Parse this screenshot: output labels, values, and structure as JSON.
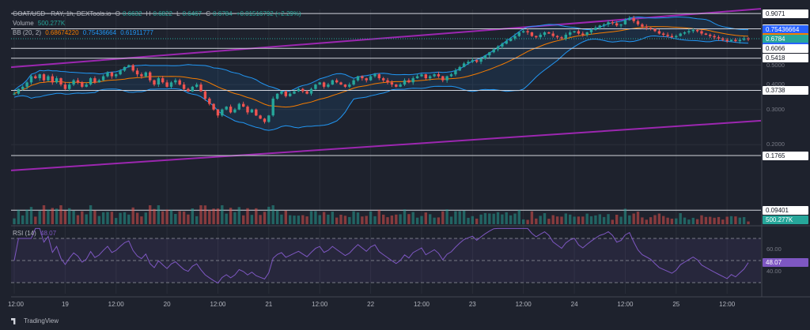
{
  "header": {
    "symbol": "GOAT/USD · RAY, 1h, DEXTools.io",
    "o_label": "O",
    "o": "0.6632",
    "h_label": "H",
    "h": "0.6822",
    "l_label": "L",
    "l": "0.6467",
    "c_label": "C",
    "c": "0.6784",
    "change": "+0.01516792 (+2.29%)",
    "volume_label": "Volume",
    "volume_value": "500.277K",
    "bb_label": "BB (20, 2)",
    "bb_basis": "0.68674220",
    "bb_upper": "0.75436664",
    "bb_lower": "0.61911777",
    "rsi_label": "RSI (14)",
    "rsi_value": "48.07"
  },
  "price_labels": [
    {
      "text": "0.9071",
      "price": 0.9071,
      "bg": "#ffffff",
      "fg": "#131722"
    },
    {
      "text": "0.7598",
      "price": 0.7598,
      "bg": "#ffffff",
      "fg": "#131722"
    },
    {
      "text": "0.75436664",
      "price": 0.75436664,
      "bg": "#2962ff",
      "fg": "#ffffff"
    },
    {
      "text": "0.68674220",
      "price": 0.6867422,
      "bg": "#f57c00",
      "fg": "#ffffff"
    },
    {
      "text": "0.6784",
      "price": 0.6784,
      "bg": "#26a69a",
      "fg": "#ffffff"
    },
    {
      "text": "0.61911777",
      "price": 0.61911777,
      "bg": "#2962ff",
      "fg": "#ffffff"
    },
    {
      "text": "0.6066",
      "price": 0.6066,
      "bg": "#ffffff",
      "fg": "#131722"
    },
    {
      "text": "0.5418",
      "price": 0.5418,
      "bg": "#ffffff",
      "fg": "#131722"
    },
    {
      "text": "0.3738",
      "price": 0.3738,
      "bg": "#ffffff",
      "fg": "#131722"
    },
    {
      "text": "0.1765",
      "price": 0.1765,
      "bg": "#ffffff",
      "fg": "#131722"
    },
    {
      "text": "0.09401",
      "price": 0.09401,
      "bg": "#ffffff",
      "fg": "#131722"
    }
  ],
  "volume_badge": {
    "text": "500.277K",
    "bg": "#26a69a",
    "fg": "#ffffff"
  },
  "rsi_badge": {
    "text": "48.07",
    "bg": "#7e57c2",
    "fg": "#ffffff"
  },
  "price_axis_ticks": [
    {
      "text": "0.5000",
      "price": 0.5
    },
    {
      "text": "0.4000",
      "price": 0.4
    },
    {
      "text": "0.3000",
      "price": 0.3
    },
    {
      "text": "0.2000",
      "price": 0.2
    }
  ],
  "rsi_axis_ticks": [
    {
      "text": "60.00",
      "value": 60
    },
    {
      "text": "40.00",
      "value": 40
    }
  ],
  "x_ticks": [
    {
      "text": "12:00",
      "bar": 0
    },
    {
      "text": "19",
      "bar": 12
    },
    {
      "text": "12:00",
      "bar": 24
    },
    {
      "text": "20",
      "bar": 36
    },
    {
      "text": "12:00",
      "bar": 48
    },
    {
      "text": "21",
      "bar": 60
    },
    {
      "text": "12:00",
      "bar": 72
    },
    {
      "text": "22",
      "bar": 84
    },
    {
      "text": "12:00",
      "bar": 96
    },
    {
      "text": "23",
      "bar": 108
    },
    {
      "text": "12:00",
      "bar": 120
    },
    {
      "text": "24",
      "bar": 132
    },
    {
      "text": "12:00",
      "bar": 144
    },
    {
      "text": "25",
      "bar": 156
    },
    {
      "text": "12:00",
      "bar": 168
    }
  ],
  "footer": {
    "brand": "TradingView"
  },
  "colors": {
    "up": "#26a69a",
    "down": "#ef5350",
    "bb_line": "#2196f3",
    "bb_fill": "rgba(33,150,243,0.10)",
    "basis": "#f57c00",
    "channel": "#9c27b0",
    "rsi": "#7e57c2",
    "rsi_fill": "rgba(126,87,194,0.10)"
  },
  "chart_data": {
    "type": "candlestick",
    "timeframe": "1h",
    "x_range": [
      "18 12:00",
      "25 14:00"
    ],
    "price_range": [
      0.08,
      0.95
    ],
    "price_scale": "log",
    "horizontal_levels": [
      0.9071,
      0.7598,
      0.6066,
      0.5418,
      0.3738,
      0.1765,
      0.09401
    ],
    "rising_channel": {
      "upper": [
        {
          "bar": 0,
          "price": 0.49
        },
        {
          "bar": 174,
          "price": 0.95
        }
      ],
      "lower": [
        {
          "bar": 0,
          "price": 0.149
        },
        {
          "bar": 174,
          "price": 0.262
        }
      ]
    },
    "closes": [
      0.36,
      0.38,
      0.39,
      0.41,
      0.44,
      0.43,
      0.45,
      0.42,
      0.44,
      0.41,
      0.43,
      0.4,
      0.38,
      0.4,
      0.42,
      0.41,
      0.39,
      0.4,
      0.43,
      0.41,
      0.42,
      0.44,
      0.46,
      0.44,
      0.45,
      0.47,
      0.49,
      0.5,
      0.47,
      0.45,
      0.44,
      0.46,
      0.42,
      0.4,
      0.43,
      0.41,
      0.39,
      0.41,
      0.42,
      0.4,
      0.38,
      0.37,
      0.39,
      0.4,
      0.37,
      0.34,
      0.32,
      0.3,
      0.28,
      0.3,
      0.31,
      0.29,
      0.3,
      0.32,
      0.31,
      0.29,
      0.3,
      0.28,
      0.27,
      0.26,
      0.28,
      0.34,
      0.36,
      0.37,
      0.35,
      0.36,
      0.37,
      0.38,
      0.37,
      0.36,
      0.38,
      0.4,
      0.41,
      0.39,
      0.4,
      0.42,
      0.41,
      0.4,
      0.39,
      0.4,
      0.42,
      0.44,
      0.43,
      0.42,
      0.44,
      0.45,
      0.43,
      0.42,
      0.41,
      0.4,
      0.39,
      0.4,
      0.42,
      0.41,
      0.43,
      0.44,
      0.45,
      0.43,
      0.44,
      0.45,
      0.44,
      0.42,
      0.44,
      0.45,
      0.47,
      0.49,
      0.51,
      0.52,
      0.53,
      0.52,
      0.54,
      0.56,
      0.58,
      0.6,
      0.62,
      0.64,
      0.66,
      0.68,
      0.7,
      0.73,
      0.74,
      0.73,
      0.7,
      0.69,
      0.71,
      0.73,
      0.72,
      0.7,
      0.69,
      0.68,
      0.71,
      0.73,
      0.74,
      0.72,
      0.71,
      0.73,
      0.75,
      0.77,
      0.79,
      0.8,
      0.82,
      0.81,
      0.79,
      0.8,
      0.84,
      0.86,
      0.83,
      0.8,
      0.78,
      0.77,
      0.76,
      0.74,
      0.72,
      0.71,
      0.7,
      0.69,
      0.7,
      0.72,
      0.73,
      0.74,
      0.75,
      0.74,
      0.72,
      0.71,
      0.7,
      0.69,
      0.68,
      0.67,
      0.66,
      0.67,
      0.66,
      0.67,
      0.68,
      0.6784
    ],
    "rsi": {
      "period": 14,
      "last": 48.07,
      "range": [
        20,
        80
      ],
      "bands": [
        70,
        50,
        30
      ]
    }
  }
}
